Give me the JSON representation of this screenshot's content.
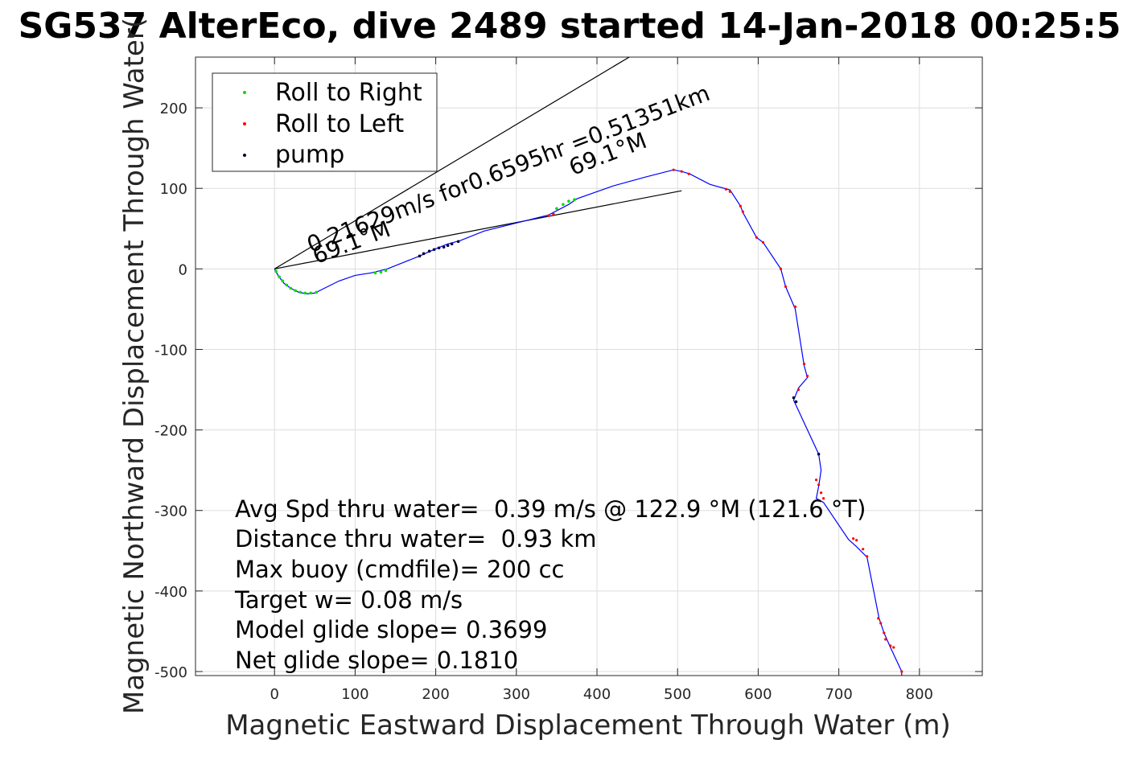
{
  "chart_data": {
    "type": "line",
    "title": "SG537 AlterEco, dive 2489 started 14-Jan-2018 00:25:5",
    "xlabel": "Magnetic Eastward Displacement Through Water (m)",
    "ylabel": "Magnetic Northward Displacement Through Water(",
    "xlim": [
      -98,
      878
    ],
    "ylim": [
      -505,
      263
    ],
    "xticks": [
      0,
      100,
      200,
      300,
      400,
      500,
      600,
      700,
      800
    ],
    "yticks": [
      200,
      100,
      0,
      -100,
      -200,
      -300,
      -400,
      -500
    ],
    "grid": true,
    "legend_placement": "top-left",
    "legend": [
      {
        "label": "Roll to Right",
        "color": "#00dd00"
      },
      {
        "label": "Roll to Left",
        "color": "#ff0000"
      },
      {
        "label": "pump",
        "color": "#000033"
      }
    ],
    "series": [
      {
        "color": "#0000ff",
        "x": [
          0,
          5,
          12,
          20,
          30,
          40,
          50,
          60,
          80,
          100,
          120,
          140,
          160,
          180,
          200,
          215,
          230,
          260,
          300,
          340,
          365,
          375,
          420,
          460,
          495,
          505,
          515,
          540,
          565,
          578,
          581,
          598,
          606,
          628,
          634,
          646,
          657,
          661,
          650,
          644,
          675,
          678,
          675,
          672,
          681,
          712,
          722,
          735,
          750,
          756,
          764,
          778,
          778
        ],
        "y": [
          0,
          -9,
          -18,
          -24,
          -29,
          -31,
          -30,
          -25,
          -15,
          -8,
          -5,
          0,
          8,
          16,
          25,
          31,
          35,
          47,
          57,
          67,
          80,
          87,
          103,
          114,
          123,
          121,
          118,
          105,
          98,
          78,
          70,
          39,
          33,
          0,
          -22,
          -50,
          -120,
          -135,
          -148,
          -163,
          -230,
          -250,
          -270,
          -285,
          -290,
          -336,
          -345,
          -358,
          -434,
          -452,
          -470,
          -500,
          -505
        ]
      }
    ],
    "markers": {
      "roll_right_color": "#00dd00",
      "roll_left_color": "#ff0000",
      "pump_color": "#000033",
      "roll_right": {
        "x": [
          2,
          6,
          10,
          15,
          20,
          26,
          32,
          38,
          45,
          52,
          125,
          132,
          138,
          350,
          358,
          365,
          372
        ],
        "y": [
          -3,
          -10,
          -15,
          -20,
          -24,
          -27,
          -29,
          -30,
          -30,
          -29,
          -5,
          -4,
          -2,
          75,
          80,
          84,
          86
        ]
      },
      "roll_left": {
        "x": [
          340,
          346,
          495,
          505,
          514,
          560,
          565,
          578,
          581,
          598,
          606,
          628,
          634,
          646,
          657,
          661,
          650,
          672,
          675,
          678,
          681,
          718,
          722,
          730,
          735,
          749,
          752,
          756,
          758,
          764,
          768,
          778
        ],
        "y": [
          66,
          68,
          123,
          121,
          118,
          99,
          96,
          78,
          71,
          39,
          33,
          0,
          -22,
          -47,
          -118,
          -133,
          -150,
          -262,
          -268,
          -278,
          -285,
          -335,
          -337,
          -348,
          -357,
          -434,
          -440,
          -452,
          -460,
          -468,
          -470,
          -500
        ]
      },
      "pump": {
        "x": [
          180,
          185,
          192,
          198,
          204,
          210,
          215,
          220,
          228,
          644,
          647,
          675
        ],
        "y": [
          16,
          19,
          22,
          24,
          26,
          27,
          29,
          31,
          34,
          -160,
          -165,
          -230
        ]
      }
    },
    "reference_lines": [
      {
        "x": [
          0,
          440
        ],
        "y": [
          0,
          263
        ]
      },
      {
        "x": [
          0,
          505
        ],
        "y": [
          0,
          97
        ]
      }
    ],
    "annotations": [
      {
        "text": "0.21629m/s for0.6595hr =0.51351km",
        "x": 45,
        "y": 20,
        "rotate": -21
      },
      {
        "text": "69.1°M",
        "x": 52,
        "y": 6,
        "rotate": -21
      },
      {
        "text": "69.1°M",
        "x": 370,
        "y": 116,
        "rotate": -21
      }
    ],
    "stats": [
      "Avg Spd thru water=  0.39 m/s @ 122.9 °M (121.6 °T)",
      "Distance thru water=  0.93 km",
      "Max buoy (cmdfile)= 200 cc",
      "Target w= 0.08 m/s",
      "Model glide slope= 0.3699",
      "Net glide slope= 0.1810"
    ]
  }
}
